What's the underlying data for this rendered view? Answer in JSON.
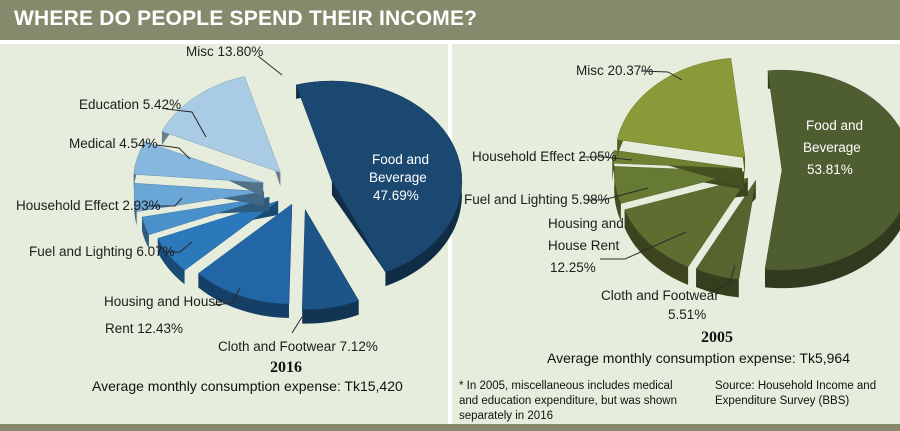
{
  "header": {
    "title": "WHERE DO PEOPLE SPEND THEIR INCOME?"
  },
  "colors": {
    "header_bg": "#858a6c",
    "panel_bg": "#e6eddc",
    "blue_dark": "#1a4870",
    "blue_light": "#a9cce4",
    "olive_dark": "#4f5e30",
    "olive_light": "#8a9a38"
  },
  "chart_data": [
    {
      "type": "pie",
      "style": "exploded-3d",
      "year": "2016",
      "caption": "Average monthly consumption expense: Tk15,420",
      "slices": [
        {
          "label": "Food and Beverage 47.69%",
          "name": "Food and Beverage",
          "value": 47.69,
          "color": "#1a4870"
        },
        {
          "label": "Cloth and Footwear 7.12%",
          "name": "Cloth and Footwear",
          "value": 7.12,
          "color": "#1d5588"
        },
        {
          "label": "Housing and House Rent 12.43%",
          "name": "Housing and House Rent",
          "value": 12.43,
          "color": "#2266a6"
        },
        {
          "label": "Fuel and Lighting 6.07%",
          "name": "Fuel and Lighting",
          "value": 6.07,
          "color": "#2b78bb"
        },
        {
          "label": "Household Effect 2.93%",
          "name": "Household Effect",
          "value": 2.93,
          "color": "#4a91cc"
        },
        {
          "label": "Medical 4.54%",
          "name": "Medical",
          "value": 4.54,
          "color": "#6aa6d6"
        },
        {
          "label": "Education 5.42%",
          "name": "Education",
          "value": 5.42,
          "color": "#86b8de"
        },
        {
          "label": "Misc 13.80%",
          "name": "Misc",
          "value": 13.8,
          "color": "#a9cce4"
        }
      ]
    },
    {
      "type": "pie",
      "style": "exploded-3d",
      "year": "2005",
      "caption": "Average monthly consumption expense: Tk5,964",
      "slices": [
        {
          "label": "Food and Beverage 53.81%",
          "name": "Food and Beverage",
          "value": 53.81,
          "color": "#4f5e30"
        },
        {
          "label": "Cloth and Footwear 5.51%",
          "name": "Cloth and Footwear",
          "value": 5.51,
          "color": "#56652f"
        },
        {
          "label": "Housing and House Rent 12.25%",
          "name": "Housing and House Rent",
          "value": 12.25,
          "color": "#5f6e30"
        },
        {
          "label": "Fuel and Lighting 5.98%",
          "name": "Fuel and Lighting",
          "value": 5.98,
          "color": "#677a33"
        },
        {
          "label": "Household Effect 2.05%",
          "name": "Household Effect",
          "value": 2.05,
          "color": "#6f8234"
        },
        {
          "label": "Misc 20.37%",
          "name": "Misc",
          "value": 20.37,
          "color": "#8a9a38"
        }
      ]
    }
  ],
  "labels": {
    "c2016": {
      "food": [
        "Food and",
        "Beverage",
        "47.69%"
      ],
      "cloth": "Cloth and Footwear 7.12%",
      "housing": [
        "Housing and House",
        "Rent 12.43%"
      ],
      "fuel": "Fuel and Lighting 6.07%",
      "household": "Household Effect 2.93%",
      "medical": "Medical 4.54%",
      "education": "Education 5.42%",
      "misc": "Misc 13.80%"
    },
    "c2005": {
      "food": [
        "Food and",
        "Beverage",
        "53.81%"
      ],
      "cloth": [
        "Cloth and Footwear",
        "5.51%"
      ],
      "housing": [
        "Housing and",
        "House Rent",
        "12.25%"
      ],
      "fuel": "Fuel and Lighting 5.98%",
      "household": "Household Effect 2.05%",
      "misc": "Misc 20.37%"
    }
  },
  "footnote": [
    "* In 2005, miscellaneous includes medical",
    "and education expenditure, but was shown",
    "separately in 2016"
  ],
  "source": [
    "Source: Household Income and",
    "Expenditure Survey (BBS)"
  ]
}
